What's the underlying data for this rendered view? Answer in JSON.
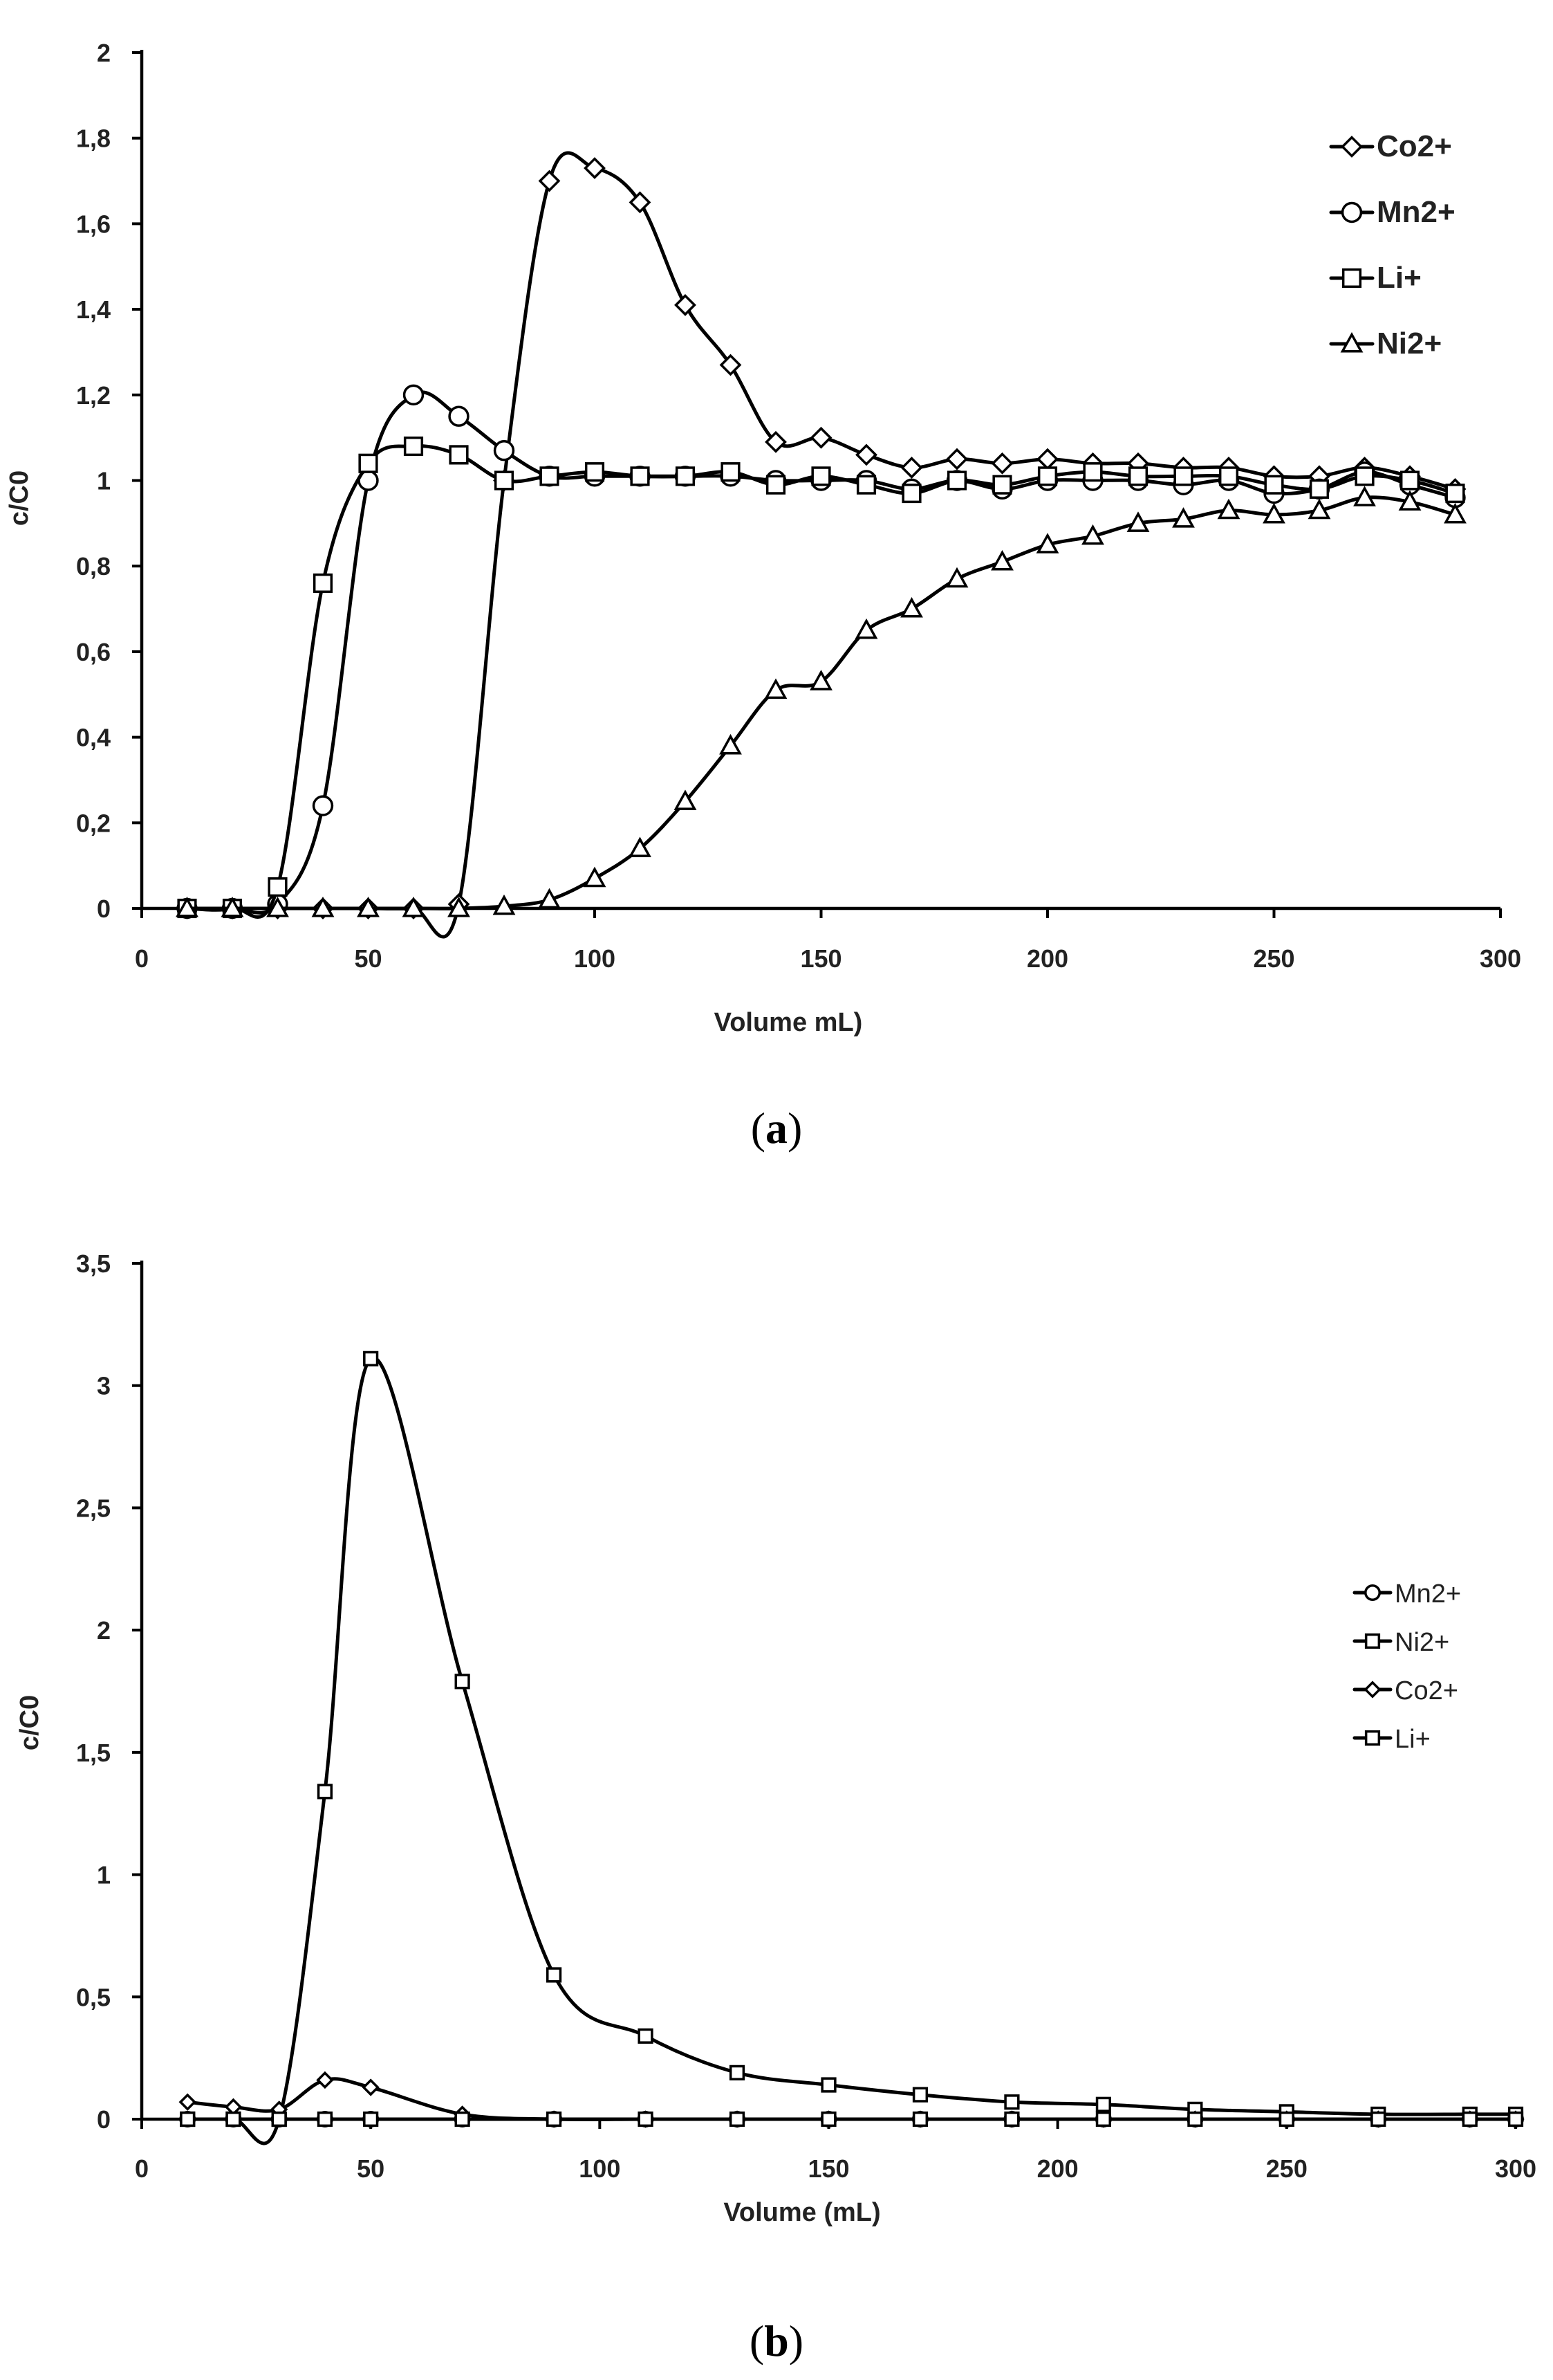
{
  "chart_data": [
    {
      "panel": "(a)",
      "panel_letter": "a",
      "type": "line",
      "title": "",
      "xlabel": "Volume  mL)",
      "ylabel": "c/C0",
      "xlim": [
        0,
        300
      ],
      "ylim": [
        0,
        2
      ],
      "xticks": [
        0,
        50,
        100,
        150,
        200,
        250,
        300
      ],
      "xtick_labels": [
        "0",
        "50",
        "100",
        "150",
        "200",
        "250",
        "300"
      ],
      "yticks": [
        0,
        0.2,
        0.4,
        0.6,
        0.8,
        1,
        1.2,
        1.4,
        1.6,
        1.8,
        2
      ],
      "ytick_labels": [
        "0",
        "0,2",
        "0,4",
        "0,6",
        "0,8",
        "1",
        "1,2",
        "1,4",
        "1,6",
        "1,8",
        "2"
      ],
      "legend": "top-right",
      "series": [
        {
          "name": "Co2+",
          "marker": "diamond",
          "x": [
            10,
            20,
            30,
            40,
            50,
            60,
            70,
            80,
            90,
            100,
            110,
            120,
            130,
            140,
            150,
            160,
            170,
            180,
            190,
            200,
            210,
            220,
            230,
            240,
            250,
            260,
            270,
            280,
            290
          ],
          "y": [
            0,
            0,
            0,
            0,
            0,
            0,
            0.01,
            1.0,
            1.7,
            1.73,
            1.65,
            1.41,
            1.27,
            1.09,
            1.1,
            1.06,
            1.03,
            1.05,
            1.04,
            1.05,
            1.04,
            1.04,
            1.03,
            1.03,
            1.01,
            1.01,
            1.03,
            1.01,
            0.98
          ]
        },
        {
          "name": "Mn2+",
          "marker": "circle",
          "x": [
            10,
            20,
            30,
            40,
            50,
            60,
            70,
            80,
            90,
            100,
            110,
            120,
            130,
            140,
            150,
            160,
            170,
            180,
            190,
            200,
            210,
            220,
            230,
            240,
            250,
            260,
            270,
            280,
            290
          ],
          "y": [
            0,
            0,
            0.01,
            0.24,
            1.0,
            1.2,
            1.15,
            1.07,
            1.01,
            1.01,
            1.01,
            1.01,
            1.01,
            1.0,
            1.0,
            1.0,
            0.98,
            1.0,
            0.98,
            1.0,
            1.0,
            1.0,
            0.99,
            1.0,
            0.97,
            0.98,
            1.02,
            0.99,
            0.96
          ]
        },
        {
          "name": "Li+",
          "marker": "square",
          "x": [
            10,
            20,
            30,
            40,
            50,
            60,
            70,
            80,
            90,
            100,
            110,
            120,
            130,
            140,
            150,
            160,
            170,
            180,
            190,
            200,
            210,
            220,
            230,
            240,
            250,
            260,
            270,
            280,
            290
          ],
          "y": [
            0,
            0,
            0.05,
            0.76,
            1.04,
            1.08,
            1.06,
            1.0,
            1.01,
            1.02,
            1.01,
            1.01,
            1.02,
            0.99,
            1.01,
            0.99,
            0.97,
            1.0,
            0.99,
            1.01,
            1.02,
            1.01,
            1.01,
            1.01,
            0.99,
            0.98,
            1.01,
            1.0,
            0.97
          ]
        },
        {
          "name": "Ni2+",
          "marker": "triangle",
          "x": [
            10,
            20,
            30,
            40,
            50,
            60,
            70,
            80,
            90,
            100,
            110,
            120,
            130,
            140,
            150,
            160,
            170,
            180,
            190,
            200,
            210,
            220,
            230,
            240,
            250,
            260,
            270,
            280,
            290
          ],
          "y": [
            0,
            0,
            0,
            0,
            0,
            0,
            0,
            0.005,
            0.02,
            0.07,
            0.14,
            0.25,
            0.38,
            0.51,
            0.53,
            0.65,
            0.7,
            0.77,
            0.81,
            0.85,
            0.87,
            0.9,
            0.91,
            0.93,
            0.92,
            0.93,
            0.96,
            0.95,
            0.92
          ]
        }
      ]
    },
    {
      "panel": "(b)",
      "panel_letter": "b",
      "type": "line",
      "title": "",
      "xlabel": "Volume (mL)",
      "ylabel": "c/C0",
      "xlim": [
        0,
        300
      ],
      "ylim": [
        0,
        3.5
      ],
      "xticks": [
        0,
        50,
        100,
        150,
        200,
        250,
        300
      ],
      "xtick_labels": [
        "0",
        "50",
        "100",
        "150",
        "200",
        "250",
        "300"
      ],
      "yticks": [
        0,
        0.5,
        1,
        1.5,
        2,
        2.5,
        3,
        3.5
      ],
      "ytick_labels": [
        "0",
        "0,5",
        "1",
        "1,5",
        "2",
        "2,5",
        "3",
        "3,5"
      ],
      "legend": "right",
      "series": [
        {
          "name": "Mn2+",
          "marker": "circle",
          "x": [
            10,
            20,
            30,
            40,
            50,
            70,
            90,
            110,
            130,
            150,
            170,
            190,
            210,
            230,
            250,
            270,
            290,
            300
          ],
          "y": [
            0,
            0,
            0,
            0,
            0,
            0,
            0,
            0,
            0,
            0,
            0,
            0,
            0,
            0,
            0,
            0,
            0,
            0
          ]
        },
        {
          "name": "Ni2+",
          "marker": "square",
          "x": [
            10,
            20,
            30,
            40,
            50,
            70,
            90,
            110,
            130,
            150,
            170,
            190,
            210,
            230,
            250,
            270,
            290,
            300
          ],
          "y": [
            0,
            0,
            0,
            1.34,
            3.11,
            1.79,
            0.59,
            0.34,
            0.19,
            0.14,
            0.1,
            0.07,
            0.06,
            0.04,
            0.03,
            0.02,
            0.02,
            0.02
          ]
        },
        {
          "name": "Co2+",
          "marker": "diamond",
          "x": [
            10,
            20,
            30,
            40,
            50,
            70,
            90,
            110,
            130,
            150,
            170,
            190,
            210,
            230,
            250,
            270,
            290,
            300
          ],
          "y": [
            0.07,
            0.05,
            0.04,
            0.16,
            0.13,
            0.02,
            0,
            0,
            0,
            0,
            0,
            0,
            0,
            0,
            0,
            0,
            0,
            0
          ]
        },
        {
          "name": "Li+",
          "marker": "square",
          "x": [
            10,
            20,
            30,
            40,
            50,
            70,
            90,
            110,
            130,
            150,
            170,
            190,
            210,
            230,
            250,
            270,
            290,
            300
          ],
          "y": [
            0,
            0,
            0,
            0,
            0,
            0,
            0,
            0,
            0,
            0,
            0,
            0,
            0,
            0,
            0,
            0,
            0,
            0
          ]
        }
      ]
    }
  ]
}
